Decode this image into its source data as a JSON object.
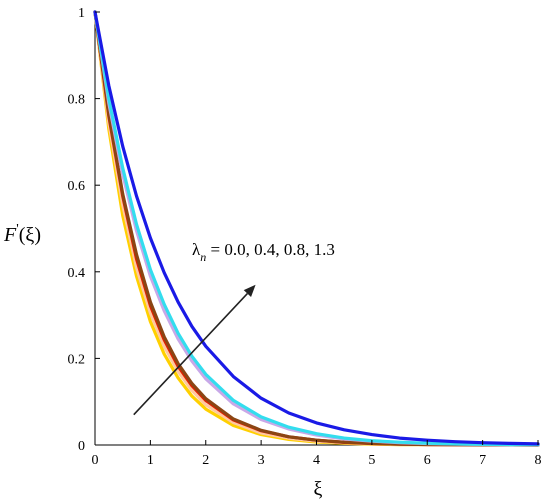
{
  "chart_data": {
    "type": "line",
    "xlabel": "ξ",
    "ylabel_main": "F",
    "ylabel_prime": "'",
    "ylabel_arg": "(ξ)",
    "xlim": [
      0,
      8
    ],
    "ylim": [
      0,
      1
    ],
    "x_ticks": [
      0,
      1,
      2,
      3,
      4,
      5,
      6,
      7,
      8
    ],
    "y_ticks": [
      0,
      0.2,
      0.4,
      0.6,
      0.8,
      1
    ],
    "y_tick_labels": [
      "0",
      "0.2",
      "0.4",
      "0.6",
      "0.8",
      "1"
    ],
    "grid": false,
    "annotation": {
      "symbol": "λ",
      "subscript": "n",
      "text": " = 0.0, 0.4, 0.8, 1.3",
      "arrow_from": [
        0.7,
        0.07
      ],
      "arrow_to": [
        2.9,
        0.37
      ]
    },
    "x": [
      0,
      0.25,
      0.5,
      0.75,
      1,
      1.25,
      1.5,
      1.75,
      2,
      2.5,
      3,
      3.5,
      4,
      4.5,
      5,
      5.5,
      6,
      6.5,
      7,
      7.5,
      8
    ],
    "series": [
      {
        "color": "#FFD000",
        "values": [
          1,
          0.73,
          0.53,
          0.39,
          0.285,
          0.21,
          0.155,
          0.113,
          0.083,
          0.045,
          0.024,
          0.013,
          0.007,
          0.004,
          0.002,
          0.001,
          0.0008,
          0.0005,
          0.0003,
          0.0002,
          0.0001
        ]
      },
      {
        "color": "#FFC8A0",
        "values": [
          1,
          0.745,
          0.555,
          0.41,
          0.305,
          0.228,
          0.17,
          0.126,
          0.093,
          0.052,
          0.028,
          0.016,
          0.009,
          0.005,
          0.003,
          0.0015,
          0.0009,
          0.0005,
          0.0003,
          0.0002,
          0.0001
        ]
      },
      {
        "color": "#E02000",
        "values": [
          1,
          0.76,
          0.575,
          0.43,
          0.322,
          0.243,
          0.182,
          0.137,
          0.103,
          0.058,
          0.033,
          0.019,
          0.011,
          0.006,
          0.0035,
          0.002,
          0.0012,
          0.0007,
          0.0004,
          0.0002,
          0.0001
        ]
      },
      {
        "color": "#8B4513",
        "values": [
          1,
          0.765,
          0.58,
          0.44,
          0.33,
          0.25,
          0.188,
          0.142,
          0.107,
          0.06,
          0.034,
          0.019,
          0.011,
          0.0065,
          0.0037,
          0.0021,
          0.0012,
          0.0007,
          0.0004,
          0.0002,
          0.0001
        ]
      },
      {
        "color": "#C8A8E8",
        "values": [
          1,
          0.79,
          0.625,
          0.495,
          0.39,
          0.31,
          0.245,
          0.194,
          0.153,
          0.095,
          0.059,
          0.037,
          0.023,
          0.014,
          0.009,
          0.0055,
          0.0035,
          0.0022,
          0.0014,
          0.0009,
          0.0005
        ]
      },
      {
        "color": "#33DDEE",
        "values": [
          1,
          0.8,
          0.64,
          0.51,
          0.405,
          0.325,
          0.258,
          0.205,
          0.163,
          0.103,
          0.065,
          0.041,
          0.026,
          0.016,
          0.01,
          0.0065,
          0.0041,
          0.0026,
          0.0016,
          0.001,
          0.0006
        ]
      },
      {
        "color": "#1A1AE6",
        "values": [
          1,
          0.83,
          0.69,
          0.575,
          0.478,
          0.398,
          0.33,
          0.274,
          0.228,
          0.158,
          0.108,
          0.074,
          0.051,
          0.035,
          0.024,
          0.016,
          0.011,
          0.0076,
          0.0052,
          0.0036,
          0.0025
        ]
      }
    ]
  }
}
